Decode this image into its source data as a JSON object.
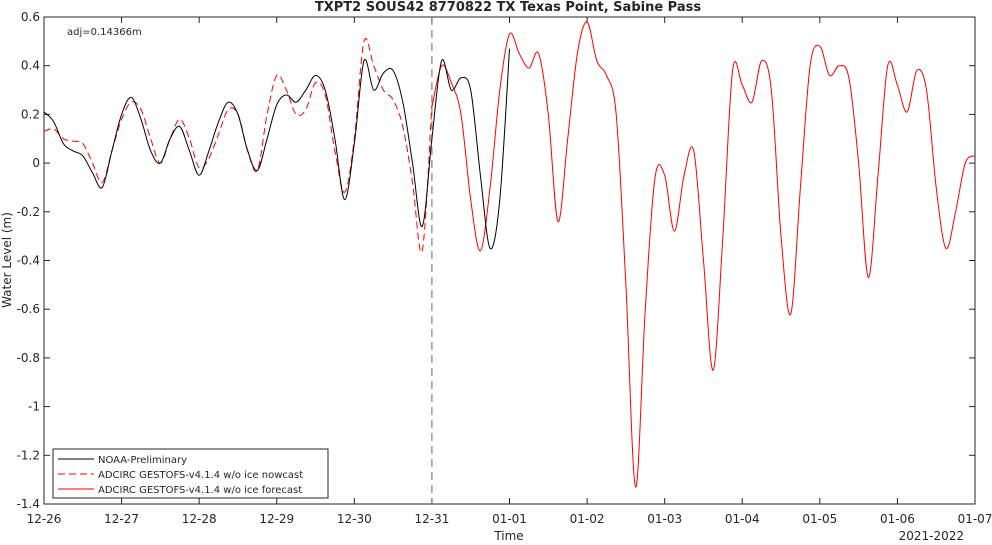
{
  "chart_data": {
    "type": "line",
    "title": "TXPT2 SOUS42 8770822 TX Texas Point, Sabine Pass",
    "annotation": "adj=0.14366m",
    "xlabel": "Time",
    "ylabel": "Water Level (m)",
    "year_label": "2021-2022",
    "xlim": [
      "2021-12-26",
      "2022-01-07"
    ],
    "ylim": [
      -1.4,
      0.6
    ],
    "x_ticks": [
      "12-26",
      "12-27",
      "12-28",
      "12-29",
      "12-30",
      "12-31",
      "01-01",
      "01-02",
      "01-03",
      "01-04",
      "01-05",
      "01-06",
      "01-07"
    ],
    "y_ticks": [
      "-1.4",
      "-1.2",
      "-1",
      "-0.8",
      "-0.6",
      "-0.4",
      "-0.2",
      "0",
      "0.2",
      "0.4",
      "0.6"
    ],
    "y_tick_values": [
      -1.4,
      -1.2,
      -1.0,
      -0.8,
      -0.6,
      -0.4,
      -0.2,
      0,
      0.2,
      0.4,
      0.6
    ],
    "nowcast_end": "2021-12-31",
    "grid": false,
    "legend_position": "bottom-left",
    "series": [
      {
        "name": "NOAA-Preliminary",
        "color": "#000000",
        "style": "solid",
        "x": [
          "2021-12-26 00:00",
          "2021-12-26 03:00",
          "2021-12-26 06:00",
          "2021-12-26 09:00",
          "2021-12-26 12:00",
          "2021-12-26 15:00",
          "2021-12-26 18:00",
          "2021-12-26 21:00",
          "2021-12-27 00:00",
          "2021-12-27 03:00",
          "2021-12-27 06:00",
          "2021-12-27 09:00",
          "2021-12-27 12:00",
          "2021-12-27 15:00",
          "2021-12-27 18:00",
          "2021-12-27 21:00",
          "2021-12-28 00:00",
          "2021-12-28 03:00",
          "2021-12-28 06:00",
          "2021-12-28 09:00",
          "2021-12-28 12:00",
          "2021-12-28 15:00",
          "2021-12-28 18:00",
          "2021-12-28 21:00",
          "2021-12-29 00:00",
          "2021-12-29 03:00",
          "2021-12-29 06:00",
          "2021-12-29 09:00",
          "2021-12-29 12:00",
          "2021-12-29 15:00",
          "2021-12-29 18:00",
          "2021-12-29 21:00",
          "2021-12-30 00:00",
          "2021-12-30 03:00",
          "2021-12-30 06:00",
          "2021-12-30 09:00",
          "2021-12-30 12:00",
          "2021-12-30 15:00",
          "2021-12-30 18:00",
          "2021-12-30 21:00",
          "2021-12-31 00:00",
          "2021-12-31 03:00",
          "2021-12-31 06:00",
          "2021-12-31 09:00",
          "2021-12-31 12:00",
          "2021-12-31 15:00",
          "2021-12-31 18:00",
          "2021-12-31 21:00",
          "2022-01-01 00:00"
        ],
        "y": [
          0.21,
          0.17,
          0.08,
          0.05,
          0.03,
          -0.04,
          -0.1,
          0.05,
          0.2,
          0.27,
          0.18,
          0.05,
          0.0,
          0.1,
          0.15,
          0.05,
          -0.05,
          0.05,
          0.17,
          0.25,
          0.2,
          0.05,
          -0.03,
          0.1,
          0.24,
          0.28,
          0.25,
          0.3,
          0.36,
          0.3,
          0.1,
          -0.15,
          0.08,
          0.42,
          0.3,
          0.37,
          0.38,
          0.25,
          0.0,
          -0.26,
          0.1,
          0.42,
          0.3,
          0.35,
          0.3,
          -0.05,
          -0.35,
          -0.15,
          0.47
        ]
      },
      {
        "name": "ADCIRC GESTOFS-v4.1.4 w/o ice nowcast",
        "color": "#ff0000",
        "style": "dashed",
        "x": [
          "2021-12-26 00:00",
          "2021-12-26 03:00",
          "2021-12-26 06:00",
          "2021-12-26 09:00",
          "2021-12-26 12:00",
          "2021-12-26 15:00",
          "2021-12-26 18:00",
          "2021-12-26 21:00",
          "2021-12-27 00:00",
          "2021-12-27 03:00",
          "2021-12-27 06:00",
          "2021-12-27 09:00",
          "2021-12-27 12:00",
          "2021-12-27 15:00",
          "2021-12-27 18:00",
          "2021-12-27 21:00",
          "2021-12-28 00:00",
          "2021-12-28 03:00",
          "2021-12-28 06:00",
          "2021-12-28 09:00",
          "2021-12-28 12:00",
          "2021-12-28 15:00",
          "2021-12-28 18:00",
          "2021-12-28 21:00",
          "2021-12-29 00:00",
          "2021-12-29 03:00",
          "2021-12-29 06:00",
          "2021-12-29 09:00",
          "2021-12-29 12:00",
          "2021-12-29 15:00",
          "2021-12-29 18:00",
          "2021-12-29 21:00",
          "2021-12-30 00:00",
          "2021-12-30 03:00",
          "2021-12-30 06:00",
          "2021-12-30 09:00",
          "2021-12-30 12:00",
          "2021-12-30 15:00",
          "2021-12-30 18:00",
          "2021-12-30 21:00",
          "2021-12-31 00:00"
        ],
        "y": [
          0.13,
          0.14,
          0.1,
          0.09,
          0.08,
          0.0,
          -0.08,
          0.05,
          0.18,
          0.25,
          0.22,
          0.1,
          0.0,
          0.1,
          0.18,
          0.1,
          -0.02,
          0.02,
          0.12,
          0.22,
          0.2,
          0.05,
          -0.03,
          0.2,
          0.36,
          0.3,
          0.2,
          0.22,
          0.33,
          0.28,
          0.05,
          -0.12,
          0.1,
          0.5,
          0.4,
          0.3,
          0.26,
          0.15,
          -0.08,
          -0.36,
          0.24
        ]
      },
      {
        "name": "ADCIRC GESTOFS-v4.1.4 w/o ice forecast",
        "color": "#ff0000",
        "style": "solid",
        "x": [
          "2021-12-31 00:00",
          "2021-12-31 03:00",
          "2021-12-31 06:00",
          "2021-12-31 09:00",
          "2021-12-31 12:00",
          "2021-12-31 15:00",
          "2021-12-31 18:00",
          "2021-12-31 21:00",
          "2022-01-01 00:00",
          "2022-01-01 03:00",
          "2022-01-01 06:00",
          "2022-01-01 09:00",
          "2022-01-01 12:00",
          "2022-01-01 15:00",
          "2022-01-01 18:00",
          "2022-01-01 21:00",
          "2022-01-02 00:00",
          "2022-01-02 03:00",
          "2022-01-02 06:00",
          "2022-01-02 09:00",
          "2022-01-02 12:00",
          "2022-01-02 15:00",
          "2022-01-02 18:00",
          "2022-01-02 21:00",
          "2022-01-03 00:00",
          "2022-01-03 03:00",
          "2022-01-03 06:00",
          "2022-01-03 09:00",
          "2022-01-03 12:00",
          "2022-01-03 15:00",
          "2022-01-03 18:00",
          "2022-01-03 21:00",
          "2022-01-04 00:00",
          "2022-01-04 03:00",
          "2022-01-04 06:00",
          "2022-01-04 09:00",
          "2022-01-04 12:00",
          "2022-01-04 15:00",
          "2022-01-04 18:00",
          "2022-01-04 21:00",
          "2022-01-05 00:00",
          "2022-01-05 03:00",
          "2022-01-05 06:00",
          "2022-01-05 09:00",
          "2022-01-05 12:00",
          "2022-01-05 15:00",
          "2022-01-05 18:00",
          "2022-01-05 21:00",
          "2022-01-06 00:00",
          "2022-01-06 03:00",
          "2022-01-06 06:00",
          "2022-01-06 09:00",
          "2022-01-06 12:00",
          "2022-01-06 15:00",
          "2022-01-06 18:00",
          "2022-01-06 21:00",
          "2022-01-07 00:00"
        ],
        "y": [
          0.23,
          0.4,
          0.33,
          0.2,
          -0.15,
          -0.36,
          -0.1,
          0.3,
          0.53,
          0.45,
          0.39,
          0.45,
          0.2,
          -0.24,
          0.1,
          0.45,
          0.58,
          0.42,
          0.36,
          0.2,
          -0.5,
          -1.33,
          -0.6,
          -0.06,
          -0.05,
          -0.28,
          -0.05,
          0.05,
          -0.4,
          -0.85,
          -0.3,
          0.38,
          0.32,
          0.25,
          0.42,
          0.3,
          -0.3,
          -0.62,
          -0.1,
          0.4,
          0.48,
          0.36,
          0.4,
          0.35,
          0.0,
          -0.47,
          -0.05,
          0.4,
          0.32,
          0.21,
          0.38,
          0.3,
          -0.1,
          -0.35,
          -0.2,
          0.0,
          0.03
        ]
      }
    ]
  }
}
